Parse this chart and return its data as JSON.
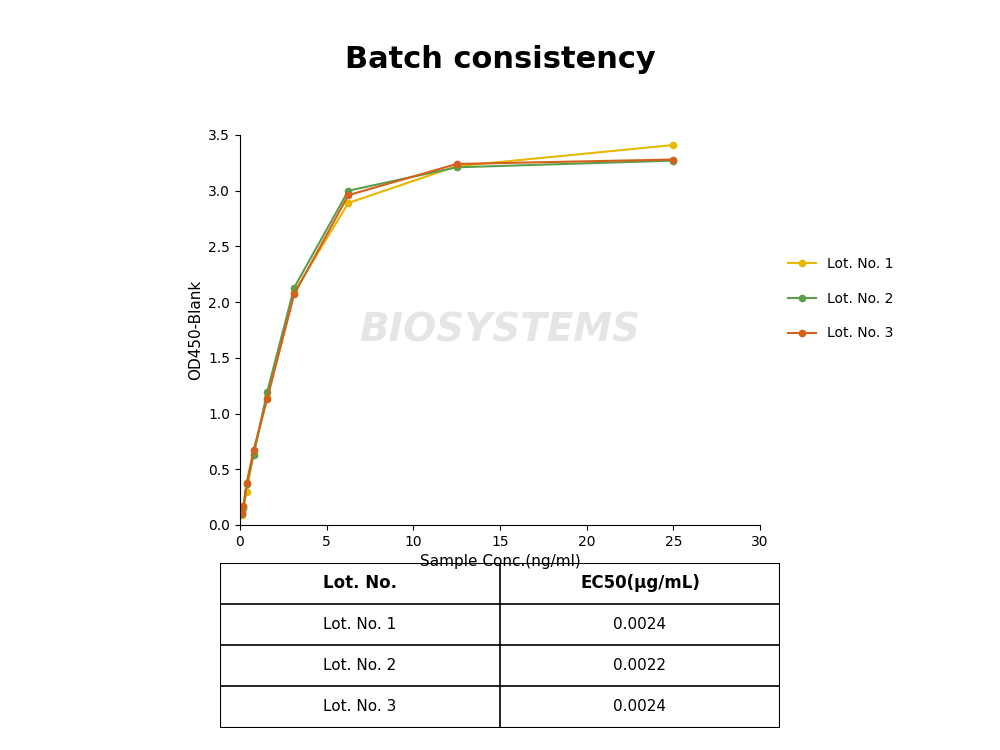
{
  "title": "Batch consistency",
  "xlabel": "Sample Conc.(ng/ml)",
  "ylabel": "OD450-Blank",
  "xlim": [
    0,
    30
  ],
  "ylim": [
    0.0,
    3.5
  ],
  "xticks": [
    0,
    5,
    10,
    15,
    20,
    25,
    30
  ],
  "yticks": [
    0.0,
    0.5,
    1.0,
    1.5,
    2.0,
    2.5,
    3.0,
    3.5
  ],
  "lot1": {
    "x": [
      0.098,
      0.195,
      0.39,
      0.781,
      1.563,
      3.125,
      6.25,
      12.5,
      25.0
    ],
    "y": [
      0.09,
      0.16,
      0.3,
      0.64,
      1.15,
      2.09,
      2.89,
      3.22,
      3.41
    ],
    "color": "#E6B800",
    "label": "Lot. No. 1"
  },
  "lot2": {
    "x": [
      0.098,
      0.195,
      0.39,
      0.781,
      1.563,
      3.125,
      6.25,
      12.5,
      25.0
    ],
    "y": [
      0.1,
      0.15,
      0.37,
      0.63,
      1.19,
      2.13,
      3.0,
      3.21,
      3.27
    ],
    "color": "#5A9E4E",
    "label": "Lot. No. 2"
  },
  "lot3": {
    "x": [
      0.098,
      0.195,
      0.39,
      0.781,
      1.563,
      3.125,
      6.25,
      12.5,
      25.0
    ],
    "y": [
      0.11,
      0.17,
      0.38,
      0.67,
      1.13,
      2.07,
      2.96,
      3.24,
      3.28
    ],
    "color": "#D4601A",
    "label": "Lot. No. 3"
  },
  "table_headers": [
    "Lot. No.",
    "EC50(μg/mL)"
  ],
  "table_rows": [
    [
      "Lot. No. 1",
      "0.0024"
    ],
    [
      "Lot. No. 2",
      "0.0022"
    ],
    [
      "Lot. No. 3",
      "0.0024"
    ]
  ],
  "bg_color": "#ffffff",
  "watermark": "BIOSYSTEMS",
  "title_fontsize": 22,
  "axis_label_fontsize": 11,
  "tick_fontsize": 10,
  "legend_fontsize": 10,
  "table_header_fontsize": 12,
  "table_row_fontsize": 11
}
